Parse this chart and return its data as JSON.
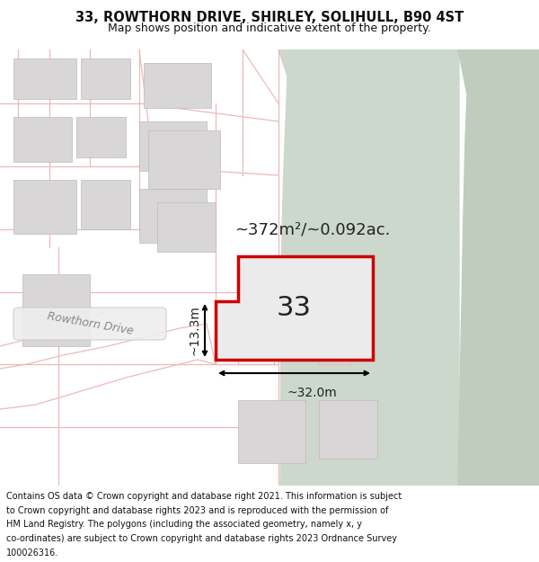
{
  "title_line1": "33, ROWTHORN DRIVE, SHIRLEY, SOLIHULL, B90 4ST",
  "title_line2": "Map shows position and indicative extent of the property.",
  "footer_lines": [
    "Contains OS data © Crown copyright and database right 2021. This information is subject",
    "to Crown copyright and database rights 2023 and is reproduced with the permission of",
    "HM Land Registry. The polygons (including the associated geometry, namely x, y",
    "co-ordinates) are subject to Crown copyright and database rights 2023 Ordnance Survey",
    "100026316."
  ],
  "map_bg": "#f7f5f5",
  "green_area_color": "#cdd8cc",
  "green_area2_color": "#bfccbe",
  "road_color": "#f0b8b8",
  "building_color": "#d8d6d6",
  "building_edge": "#bbbbbb",
  "highlight_color": "#cc0000",
  "highlight_fill": "#ebebeb",
  "area_label": "~372m²/~0.092ac.",
  "number_label": "33",
  "dim_width": "~32.0m",
  "dim_height": "~13.3m",
  "road_label": "Rowthorn Drive",
  "title_fontsize": 10.5,
  "subtitle_fontsize": 9.0,
  "footer_fontsize": 7.0
}
